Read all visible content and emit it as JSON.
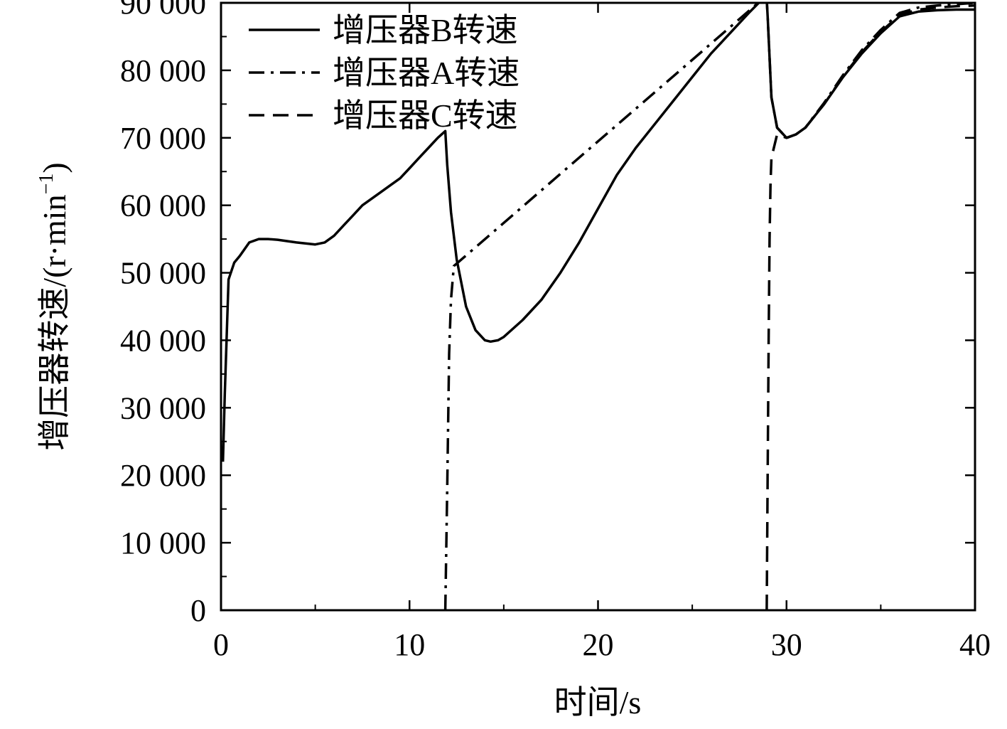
{
  "chart_data": {
    "type": "line",
    "title": "",
    "xlabel": "时间/s",
    "ylabel_main": "增压器转速/(r·min",
    "ylabel_sup": "−1",
    "ylabel_close": ")",
    "xlim": [
      0,
      40
    ],
    "ylim": [
      0,
      90000
    ],
    "xticks": [
      0,
      10,
      20,
      30,
      40
    ],
    "xtick_labels": [
      "0",
      "10",
      "20",
      "30",
      "40"
    ],
    "yticks": [
      0,
      10000,
      20000,
      30000,
      40000,
      50000,
      60000,
      70000,
      80000,
      90000
    ],
    "ytick_labels": [
      "0",
      "10 000",
      "20 000",
      "30 000",
      "40 000",
      "50 000",
      "60 000",
      "70 000",
      "80 000",
      "90 000"
    ],
    "grid": false,
    "legend_position": "top-left",
    "series": [
      {
        "name": "增压器B转速",
        "style": "solid",
        "x": [
          0.1,
          0.2,
          0.4,
          0.7,
          1.0,
          1.5,
          2.0,
          2.5,
          3.0,
          4.0,
          5.0,
          5.5,
          6.0,
          6.5,
          7.0,
          7.5,
          8.0,
          8.5,
          9.0,
          9.5,
          10.0,
          10.5,
          11.0,
          11.5,
          11.9,
          12.0,
          12.2,
          12.5,
          13.0,
          13.5,
          14.0,
          14.3,
          14.7,
          15.0,
          16.0,
          17.0,
          18.0,
          19.0,
          20.0,
          21.0,
          22.0,
          23.0,
          24.0,
          25.0,
          26.0,
          27.0,
          28.0,
          28.7,
          28.9,
          29.0,
          29.2,
          29.5,
          30.0,
          30.5,
          31.0,
          32.0,
          33.0,
          34.0,
          35.0,
          36.0,
          37.0,
          38.0,
          39.0,
          40.0
        ],
        "y": [
          22000,
          32000,
          49000,
          51500,
          52500,
          54500,
          55000,
          55000,
          54900,
          54500,
          54200,
          54500,
          55500,
          57000,
          58500,
          60000,
          61000,
          62000,
          63000,
          64000,
          65500,
          67000,
          68500,
          70000,
          71000,
          66000,
          59000,
          52000,
          45000,
          41500,
          40000,
          39800,
          40000,
          40500,
          43000,
          46000,
          50000,
          54500,
          59500,
          64500,
          68500,
          72000,
          75500,
          79000,
          82500,
          85500,
          88500,
          90500,
          93000,
          88000,
          76000,
          71500,
          70000,
          70500,
          71500,
          75000,
          79000,
          82500,
          85500,
          88000,
          88700,
          88900,
          89000,
          89000
        ]
      },
      {
        "name": "增压器A转速",
        "style": "dashdot",
        "x": [
          11.9,
          12.0,
          12.1,
          12.2,
          12.35,
          28.7,
          28.9,
          29.0,
          29.2,
          29.5,
          30.0,
          30.5,
          31.0,
          32.0,
          33.0,
          34.0,
          35.0,
          36.0,
          37.0,
          38.0,
          39.0,
          40.0
        ],
        "y": [
          0,
          18000,
          38000,
          46000,
          51000,
          90500,
          93000,
          88000,
          76000,
          71500,
          70000,
          70500,
          71500,
          75200,
          79300,
          83000,
          86000,
          88500,
          89300,
          89600,
          89800,
          90000
        ]
      },
      {
        "name": "增压器C转速",
        "style": "dashed",
        "x": [
          28.95,
          29.0,
          29.05,
          29.1,
          29.15,
          29.2,
          29.5,
          30.0,
          30.5,
          31.0,
          32.0,
          33.0,
          34.0,
          35.0,
          36.0,
          37.0,
          38.0,
          39.0,
          40.0
        ],
        "y": [
          0,
          20000,
          40000,
          55000,
          63000,
          67000,
          70500,
          70000,
          70500,
          71500,
          75000,
          79100,
          82700,
          85700,
          88200,
          89000,
          89300,
          89500,
          89600
        ]
      }
    ]
  }
}
